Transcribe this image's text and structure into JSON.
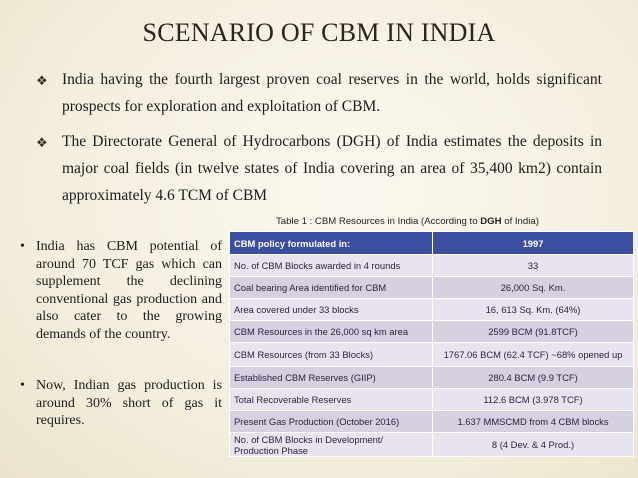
{
  "title": "SCENARIO OF CBM IN INDIA",
  "bullets": [
    "India having the fourth largest proven coal reserves in the world, holds significant prospects for exploration and exploitation of CBM.",
    "The Directorate General of Hydrocarbons (DGH) of India estimates the deposits in major coal fields (in twelve states of India covering an area of 35,400 km2) contain approximately 4.6 TCM of CBM"
  ],
  "bullet_marker": "❖",
  "caption": {
    "prefix": "Table 1 : CBM Resources in India (According to ",
    "bold": "DGH",
    "suffix": " of India)"
  },
  "left_bullets": [
    "India has CBM potential of around 70 TCF gas which can supplement the declining conventional gas production and also cater to the growing demands of the country.",
    "Now, Indian gas production is around 30% short of gas it requires."
  ],
  "left_bullet_marker": "•",
  "table": {
    "header": [
      "CBM policy formulated in:",
      "1997"
    ],
    "rows": [
      [
        "No. of CBM Blocks awarded in 4 rounds",
        "33"
      ],
      [
        "Coal bearing Area identified for CBM",
        "26,000 Sq. Km."
      ],
      [
        "Area covered under 33 blocks",
        "16, 613 Sq. Km. (64%)"
      ],
      [
        "CBM Resources in the 26,000 sq km area",
        "2599 BCM (91.8TCF)"
      ],
      [
        "CBM Resources (from 33 Blocks)",
        "1767.06 BCM (62.4 TCF) ~68% opened up"
      ],
      [
        "Established CBM Reserves (GIIP)",
        "280.4 BCM (9.9 TCF)"
      ],
      [
        "Total Recoverable Reserves",
        "112.6 BCM (3.978 TCF)"
      ],
      [
        "Present Gas  Production (October 2016)",
        "1.637 MMSCMD from 4 CBM blocks"
      ],
      [
        "No. of CBM Blocks in Development/ Production Phase",
        "8 (4 Dev. & 4 Prod.)"
      ]
    ]
  },
  "colors": {
    "table_header": "#3b4ea0",
    "row_light": "#e8e3ef",
    "row_dark": "#d6d0e1",
    "background": "#f3eddc"
  }
}
